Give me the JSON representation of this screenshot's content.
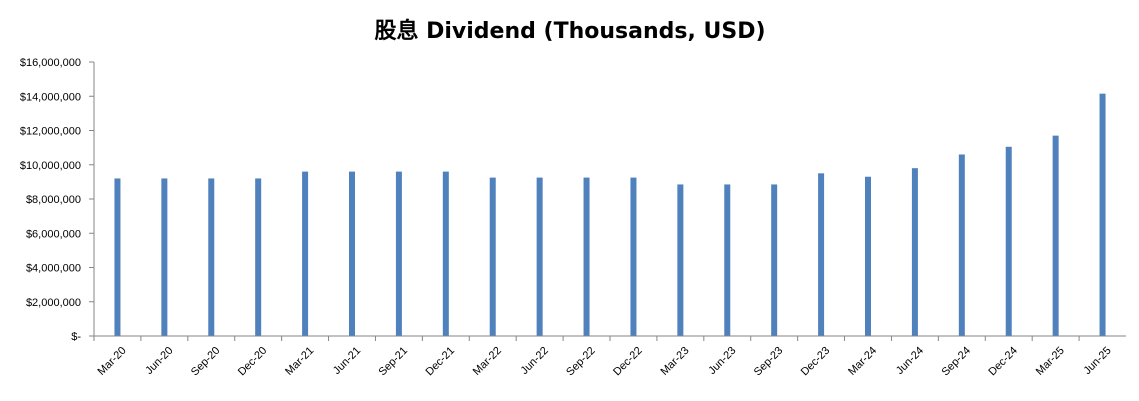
{
  "chart_data": {
    "type": "bar",
    "title": "股息 Dividend (Thousands, USD)",
    "xlabel": "",
    "ylabel": "",
    "categories": [
      "Mar-20",
      "Jun-20",
      "Sep-20",
      "Dec-20",
      "Mar-21",
      "Jun-21",
      "Sep-21",
      "Dec-21",
      "Mar-22",
      "Jun-22",
      "Sep-22",
      "Dec-22",
      "Mar-23",
      "Jun-23",
      "Sep-23",
      "Dec-23",
      "Mar-24",
      "Jun-24",
      "Sep-24",
      "Dec-24",
      "Mar-25",
      "Jun-25"
    ],
    "values": [
      9200000,
      9200000,
      9200000,
      9200000,
      9600000,
      9600000,
      9600000,
      9600000,
      9250000,
      9250000,
      9250000,
      9250000,
      8850000,
      8850000,
      8850000,
      9500000,
      9300000,
      9800000,
      10600000,
      11050000,
      11700000,
      14150000
    ],
    "ylim": [
      0,
      16000000
    ],
    "yticks": [
      0,
      2000000,
      4000000,
      6000000,
      8000000,
      10000000,
      12000000,
      14000000,
      16000000
    ],
    "ytick_labels": [
      "$-",
      "$2,000,000",
      "$4,000,000",
      "$6,000,000",
      "$8,000,000",
      "$10,000,000",
      "$12,000,000",
      "$14,000,000",
      "$16,000,000"
    ],
    "grid": false,
    "legend": "none",
    "bar_color": "#4F81BD"
  }
}
